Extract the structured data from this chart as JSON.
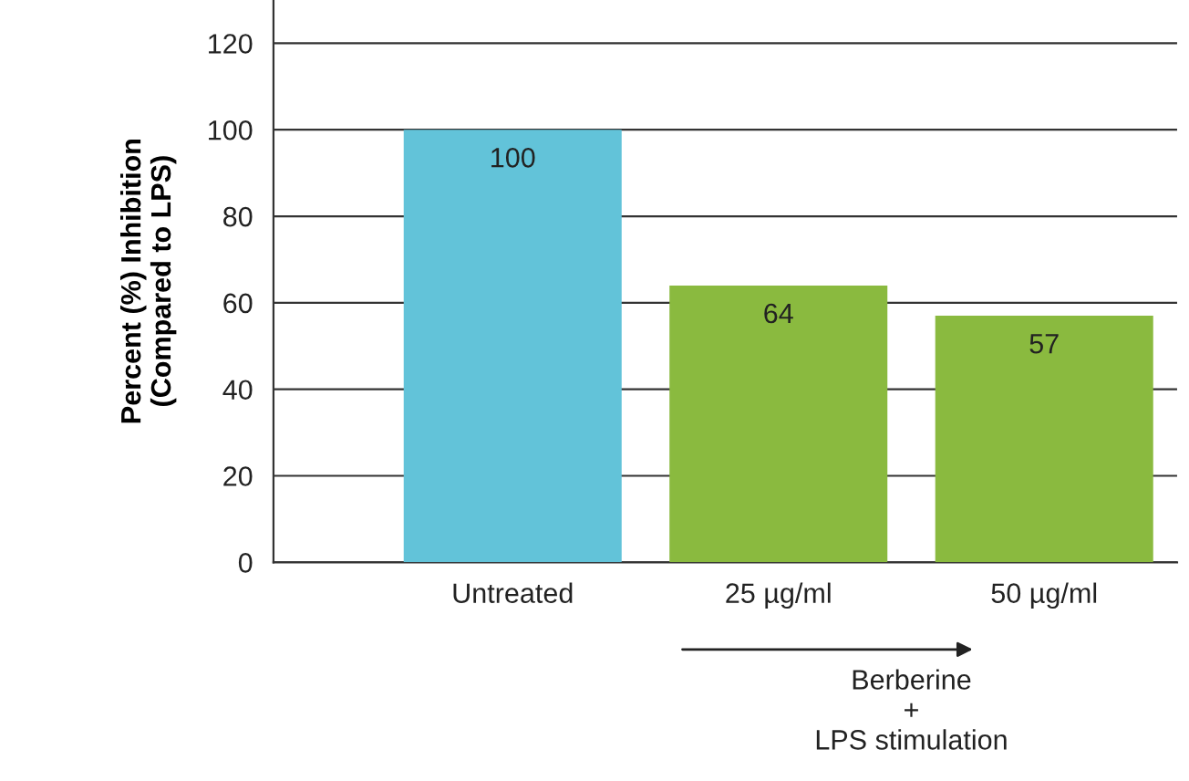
{
  "chart_data": {
    "type": "bar",
    "ylabel": "Percent (%) Inhibition\n(Compared to LPS)",
    "categories": [
      "Untreated",
      "25 µg/ml",
      "50 µg/ml"
    ],
    "values": [
      100,
      64,
      57
    ],
    "colors": [
      "#62c3d9",
      "#8aba3f",
      "#8aba3f"
    ],
    "ylim": [
      0,
      130
    ],
    "yticks": [
      0,
      20,
      40,
      60,
      80,
      100,
      120
    ],
    "grid": "y",
    "data_labels": true,
    "annotations": [
      "Berberine\n+\nLPS stimulation"
    ]
  }
}
